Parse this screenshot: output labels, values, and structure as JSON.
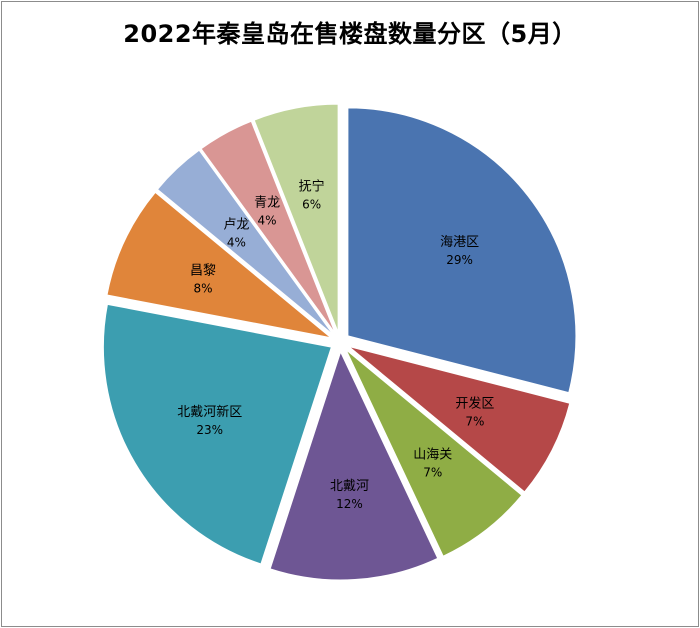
{
  "chart_data": {
    "type": "pie",
    "title": "2022年秦皇岛在售楼盘数量分区（5月）",
    "exploded": true,
    "slices": [
      {
        "name": "海港区",
        "value": 29,
        "label": "29%",
        "color": "#4a74b0"
      },
      {
        "name": "开发区",
        "value": 7,
        "label": "7%",
        "color": "#b54848"
      },
      {
        "name": "山海关",
        "value": 7,
        "label": "7%",
        "color": "#8fad45"
      },
      {
        "name": "北戴河",
        "value": 12,
        "label": "12%",
        "color": "#6e5694"
      },
      {
        "name": "北戴河新区",
        "value": 23,
        "label": "23%",
        "color": "#3c9eb0"
      },
      {
        "name": "昌黎",
        "value": 8,
        "label": "8%",
        "color": "#e0853a"
      },
      {
        "name": "卢龙",
        "value": 4,
        "label": "4%",
        "color": "#97aed6"
      },
      {
        "name": "青龙",
        "value": 4,
        "label": "4%",
        "color": "#d99694"
      },
      {
        "name": "抚宁",
        "value": 6,
        "label": "6%",
        "color": "#c0d49a"
      }
    ]
  }
}
